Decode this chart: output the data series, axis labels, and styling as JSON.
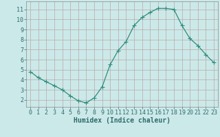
{
  "x": [
    0,
    1,
    2,
    3,
    4,
    5,
    6,
    7,
    8,
    9,
    10,
    11,
    12,
    13,
    14,
    15,
    16,
    17,
    18,
    19,
    20,
    21,
    22,
    23
  ],
  "y": [
    4.8,
    4.2,
    3.8,
    3.4,
    3.0,
    2.4,
    1.9,
    1.7,
    2.2,
    3.3,
    5.5,
    6.9,
    7.8,
    9.4,
    10.2,
    10.7,
    11.1,
    11.1,
    11.0,
    9.4,
    8.1,
    7.4,
    6.5,
    5.7
  ],
  "line_color": "#2e8b7a",
  "marker": "D",
  "marker_size": 2.0,
  "bg_color": "#cce9e9",
  "grid_color": "#b8a8a8",
  "xlabel": "Humidex (Indice chaleur)",
  "xlabel_fontsize": 7,
  "tick_fontsize": 6.0,
  "xlim": [
    -0.5,
    23.5
  ],
  "ylim": [
    1.3,
    11.8
  ],
  "yticks": [
    2,
    3,
    4,
    5,
    6,
    7,
    8,
    9,
    10,
    11
  ],
  "xticks": [
    0,
    1,
    2,
    3,
    4,
    5,
    6,
    7,
    8,
    9,
    10,
    11,
    12,
    13,
    14,
    15,
    16,
    17,
    18,
    19,
    20,
    21,
    22,
    23
  ]
}
